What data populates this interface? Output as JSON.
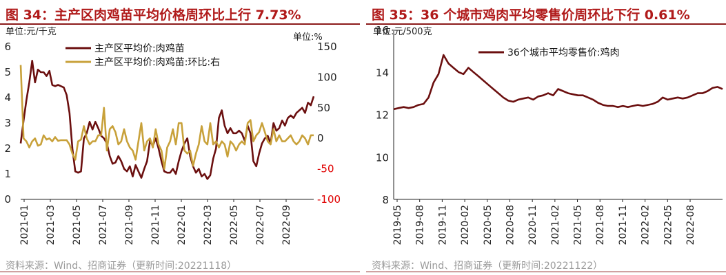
{
  "colors": {
    "title": "#b01a1a",
    "rule": "#8b1a1a",
    "series_dark": "#6b0f0f",
    "series_gold": "#c8a13a",
    "negative_tick": "#e00000",
    "source": "#9a9a9a"
  },
  "left": {
    "title": "图 34：主产区肉鸡苗平均价格周环比上行 7.73%",
    "source": "资料来源：Wind、招商证券（更新时间:20221118）"
  },
  "right": {
    "title": "图 35：36 个城市鸡肉平均零售价周环比下行 0.61%",
    "source": "资料来源：Wind、招商证券（更新时间:20221122）"
  },
  "chart_data": [
    {
      "type": "line",
      "y_unit_left": "单位:元/千克",
      "y_unit_right": "单位:%",
      "ylim_left": [
        0,
        6
      ],
      "ylim_right": [
        -100,
        150
      ],
      "yticks_left": [
        "0",
        "1",
        "2",
        "3",
        "4",
        "5",
        "6"
      ],
      "yticks_right": [
        "-100",
        "-50",
        "0",
        "50",
        "100",
        "150"
      ],
      "xticks": [
        "2021-01",
        "2021-03",
        "2021-05",
        "2021-07",
        "2021-09",
        "2021-11",
        "2022-01",
        "2022-03",
        "2022-05",
        "2022-07",
        "2022-09"
      ],
      "legend_placement": "top-center",
      "series": [
        {
          "name": "主产区平均价:肉鸡苗",
          "axis": "left",
          "values": [
            2.2,
            3.1,
            3.9,
            4.6,
            5.45,
            4.6,
            5.1,
            5.0,
            5.0,
            4.85,
            5.05,
            4.5,
            4.45,
            4.5,
            4.45,
            4.4,
            4.1,
            3.4,
            2.0,
            1.1,
            1.05,
            1.1,
            2.4,
            2.6,
            3.05,
            2.75,
            3.05,
            2.8,
            2.5,
            2.4,
            2.2,
            1.7,
            1.4,
            1.45,
            1.7,
            1.5,
            1.2,
            1.1,
            1.3,
            0.9,
            1.35,
            1.1,
            0.85,
            1.2,
            1.5,
            2.3,
            2.1,
            2.4,
            2.0,
            1.5,
            1.1,
            1.05,
            1.05,
            1.2,
            1.0,
            1.5,
            1.9,
            2.2,
            2.4,
            1.7,
            1.3,
            1.05,
            1.2,
            0.9,
            1.0,
            0.8,
            0.95,
            1.6,
            2.0,
            3.2,
            3.5,
            2.9,
            2.6,
            2.8,
            2.6,
            2.6,
            2.7,
            2.6,
            2.3,
            2.9,
            2.6,
            1.5,
            1.3,
            1.8,
            2.2,
            2.4,
            2.5,
            2.2,
            3.0,
            2.7,
            2.8,
            3.1,
            2.9,
            3.2,
            3.3,
            3.2,
            3.4,
            3.5,
            3.6,
            3.4,
            3.8,
            3.7,
            4.05
          ]
        },
        {
          "name": "主产区平均价:肉鸡苗:环比:右",
          "axis": "right",
          "values": [
            120,
            0,
            -5,
            -15,
            -5,
            0,
            -12,
            -10,
            5,
            -2,
            0,
            -5,
            2,
            -4,
            -3,
            -3,
            -3,
            -10,
            -25,
            -35,
            -5,
            -2,
            20,
            0,
            -10,
            -5,
            -5,
            5,
            5,
            50,
            -20,
            15,
            20,
            10,
            -10,
            -5,
            15,
            -5,
            -15,
            -20,
            -35,
            -5,
            25,
            -20,
            -5,
            0,
            -15,
            15,
            -10,
            -20,
            -50,
            -15,
            -5,
            15,
            -10,
            25,
            25,
            -20,
            -25,
            -20,
            -45,
            -25,
            -10,
            20,
            -5,
            -10,
            25,
            -10,
            -5,
            -15,
            -5,
            -10,
            -30,
            -5,
            -10,
            -20,
            -10,
            -5,
            -10,
            25,
            30,
            -5,
            5,
            10,
            25,
            10,
            -5,
            -10,
            15,
            -5,
            5,
            -5,
            -5,
            0,
            5,
            -5,
            -10,
            -5,
            5,
            0,
            -10,
            5,
            5
          ]
        }
      ]
    },
    {
      "type": "line",
      "y_unit_left": "单位:元/500克",
      "ylim": [
        8,
        16
      ],
      "yticks": [
        "8",
        "10",
        "12",
        "14",
        "16"
      ],
      "xticks": [
        "2019-05",
        "2019-08",
        "2019-11",
        "2020-02",
        "2020-05",
        "2020-08",
        "2020-11",
        "2021-02",
        "2021-05",
        "2021-08",
        "2021-11",
        "2022-02",
        "2022-05",
        "2022-08"
      ],
      "legend_placement": "top-center",
      "series": [
        {
          "name": "36个城市平均零售价:鸡肉",
          "values": [
            12.25,
            12.3,
            12.35,
            12.3,
            12.35,
            12.45,
            12.5,
            12.8,
            13.5,
            13.9,
            14.8,
            14.4,
            14.2,
            14.0,
            13.9,
            14.2,
            14.0,
            13.8,
            13.6,
            13.4,
            13.2,
            13.0,
            12.8,
            12.65,
            12.6,
            12.7,
            12.75,
            12.8,
            12.7,
            12.85,
            12.9,
            13.0,
            12.9,
            13.2,
            13.1,
            13.0,
            12.95,
            12.9,
            12.9,
            12.8,
            12.7,
            12.55,
            12.45,
            12.4,
            12.4,
            12.35,
            12.4,
            12.35,
            12.4,
            12.45,
            12.4,
            12.45,
            12.5,
            12.6,
            12.8,
            12.7,
            12.75,
            12.8,
            12.75,
            12.8,
            12.9,
            13.0,
            13.0,
            13.1,
            13.25,
            13.3,
            13.2
          ]
        }
      ]
    }
  ]
}
